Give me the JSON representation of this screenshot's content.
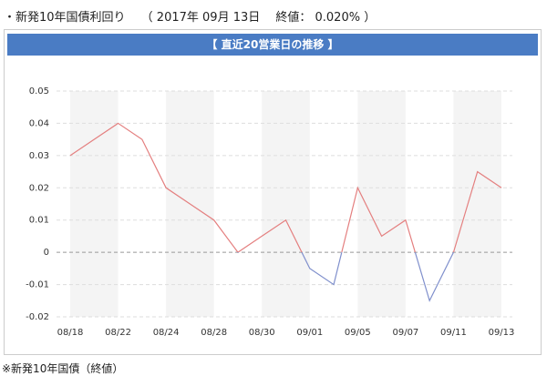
{
  "header": {
    "title": "・新発10年国債利回り　 （ 2017年 09月 13日　 終値： 0.020% ）"
  },
  "panel": {
    "title": "【 直近20営業日の推移 】"
  },
  "footer": {
    "note": "※新発10年国債（終値）"
  },
  "chart_data": {
    "type": "line",
    "categories": [
      "08/18",
      null,
      "08/22",
      null,
      "08/24",
      null,
      "08/28",
      null,
      "08/30",
      null,
      "09/01",
      null,
      "09/05",
      null,
      "09/07",
      null,
      "09/11",
      null,
      "09/13"
    ],
    "series": [
      {
        "color": "#e47f7f",
        "negative_color": "#7f8fcc",
        "values": [
          0.03,
          0.035,
          0.04,
          0.035,
          0.02,
          0.015,
          0.01,
          0,
          0.005,
          0.01,
          -0.005,
          -0.01,
          0.02,
          0.005,
          0.01,
          -0.015,
          0,
          0.025,
          0.02
        ]
      }
    ],
    "ylim": [
      -0.02,
      0.05
    ],
    "yticks": [
      -0.02,
      -0.01,
      0,
      0.01,
      0.02,
      0.03,
      0.04,
      0.05
    ],
    "grid": true
  }
}
